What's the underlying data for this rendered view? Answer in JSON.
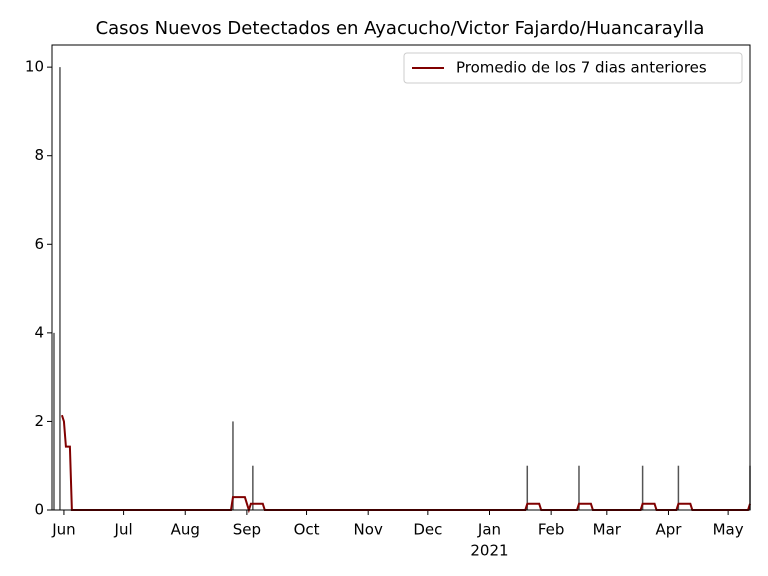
{
  "chart_data": {
    "type": "line",
    "title": "Casos Nuevos Detectados en Ayacucho/Victor Fajardo/Huancaraylla",
    "series": [
      {
        "name": "Promedio de los 7 dias anteriores",
        "color": "#800000",
        "x": [
          "2020-05-31",
          "2020-06-01",
          "2020-06-02",
          "2020-06-04",
          "2020-06-05",
          "2020-08-24",
          "2020-08-25",
          "2020-08-31",
          "2020-09-02",
          "2020-09-03",
          "2020-09-09",
          "2020-09-10",
          "2021-01-19",
          "2021-01-20",
          "2021-01-26",
          "2021-01-27",
          "2021-02-14",
          "2021-02-15",
          "2021-02-21",
          "2021-02-22",
          "2021-03-18",
          "2021-03-19",
          "2021-03-25",
          "2021-03-26",
          "2021-04-05",
          "2021-04-06",
          "2021-04-12",
          "2021-04-13",
          "2021-05-11",
          "2021-05-12"
        ],
        "values": [
          2.14,
          2.0,
          1.43,
          1.43,
          0,
          0,
          0.29,
          0.29,
          0,
          0.14,
          0.14,
          0,
          0,
          0.14,
          0.14,
          0,
          0,
          0.14,
          0.14,
          0,
          0,
          0.14,
          0.14,
          0,
          0,
          0.14,
          0.14,
          0,
          0,
          0.14
        ]
      }
    ],
    "bars": {
      "color": "#555555",
      "x": [
        "2020-05-27",
        "2020-05-30",
        "2020-08-25",
        "2020-09-04",
        "2021-01-20",
        "2021-02-15",
        "2021-03-19",
        "2021-04-06",
        "2021-05-12"
      ],
      "values": [
        4,
        10,
        2,
        1,
        1,
        1,
        1,
        1,
        1
      ]
    },
    "xlim": [
      "2020-05-26",
      "2021-05-12"
    ],
    "xticks": [
      {
        "value": "2020-06-01",
        "label": "Jun"
      },
      {
        "value": "2020-07-01",
        "label": "Jul"
      },
      {
        "value": "2020-08-01",
        "label": "Aug"
      },
      {
        "value": "2020-09-01",
        "label": "Sep"
      },
      {
        "value": "2020-10-01",
        "label": "Oct"
      },
      {
        "value": "2020-11-01",
        "label": "Nov"
      },
      {
        "value": "2020-12-01",
        "label": "Dec"
      },
      {
        "value": "2021-01-01",
        "label": "Jan",
        "sublabel": "2021"
      },
      {
        "value": "2021-02-01",
        "label": "Feb"
      },
      {
        "value": "2021-03-01",
        "label": "Mar"
      },
      {
        "value": "2021-04-01",
        "label": "Apr"
      },
      {
        "value": "2021-05-01",
        "label": "May"
      }
    ],
    "ylim": [
      0,
      10.5
    ],
    "yticks": [
      0,
      2,
      4,
      6,
      8,
      10
    ],
    "legend": "upper right"
  }
}
